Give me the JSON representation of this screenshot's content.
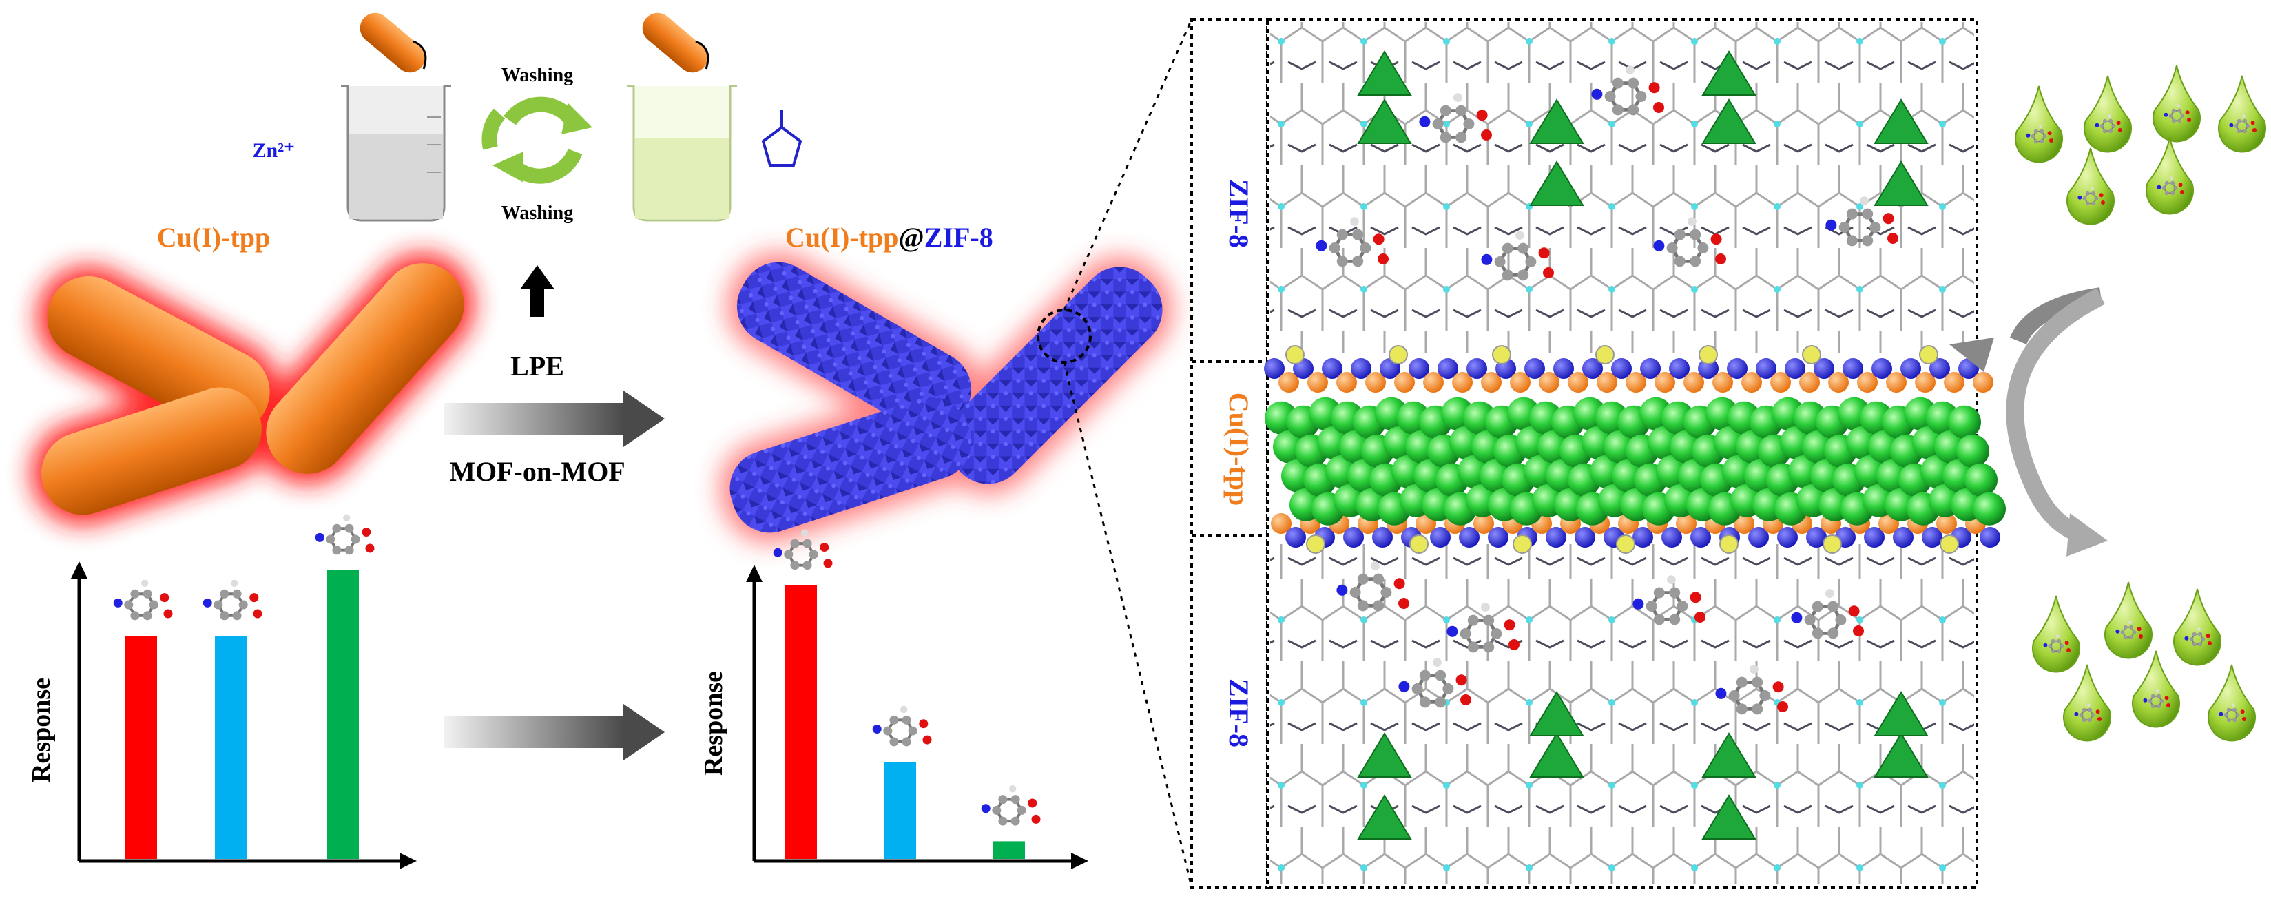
{
  "left": {
    "ion_label": "Zn²⁺",
    "washing_top": "Washing",
    "washing_bottom": "Washing",
    "material_before": "Cu(I)-tpp",
    "material_after_part1": "Cu(I)-tpp",
    "material_after_at": "@",
    "material_after_part2": "ZIF-8",
    "process_top": "LPE",
    "process_bottom": "MOF-on-MOF",
    "ylabel_left": "Response",
    "ylabel_right": "Response"
  },
  "chart_data": [
    {
      "type": "bar",
      "ylabel": "Response",
      "values": [
        0.75,
        0.75,
        0.97
      ],
      "colors": [
        "#ff0000",
        "#00b0f0",
        "#00b050"
      ]
    },
    {
      "type": "bar",
      "ylabel": "Response",
      "values": [
        0.93,
        0.33,
        0.06
      ],
      "colors": [
        "#ff0000",
        "#00b0f0",
        "#00b050"
      ]
    }
  ],
  "structure": {
    "top_layer": "ZIF-8",
    "middle_layer": "Cu(I)-tpp",
    "bottom_layer": "ZIF-8"
  },
  "colors": {
    "orange": "#f07c1c",
    "blue": "#3333e6",
    "green": "#22b14c",
    "arrow_gray": "#555555"
  },
  "icons": [
    "beaker-zn-icon",
    "beaker-linker-icon",
    "recycle-arrows-icon",
    "imidazole-icon",
    "droplet-icon"
  ]
}
